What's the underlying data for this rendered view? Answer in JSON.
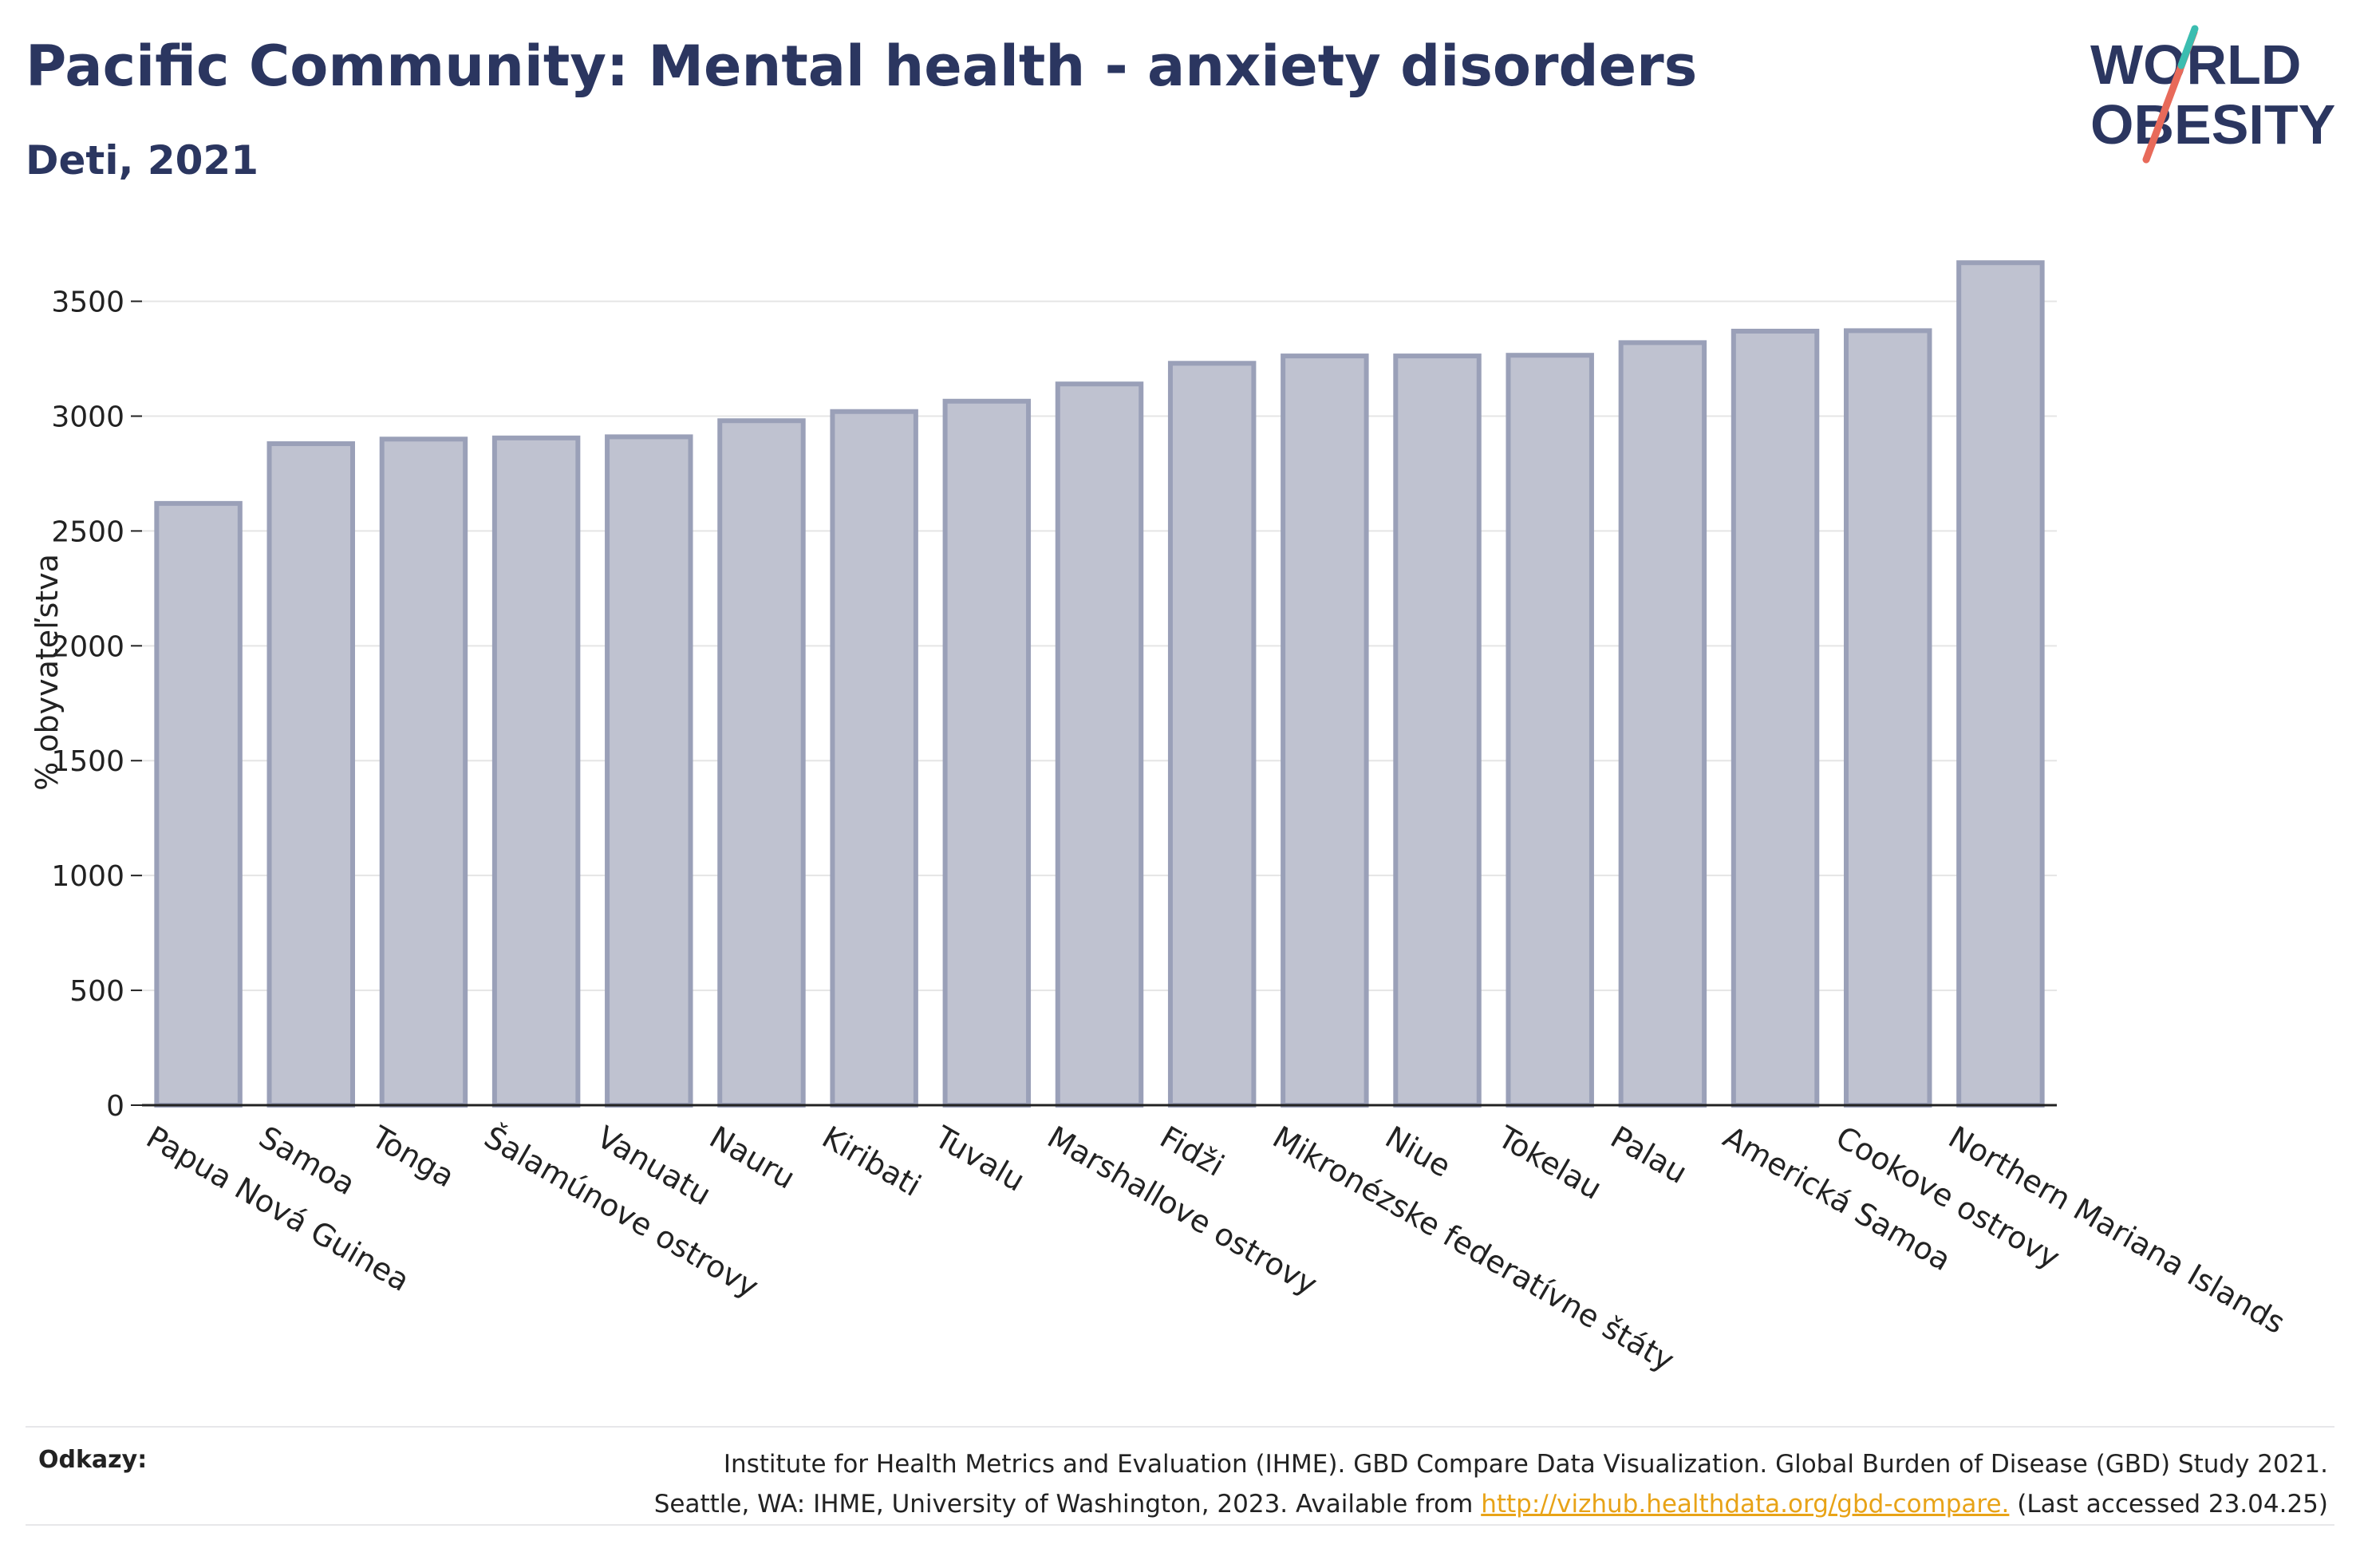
{
  "header": {
    "title": "Pacific Community: Mental health - anxiety disorders",
    "subtitle": "Deti, 2021"
  },
  "logo": {
    "line1": "WORLD",
    "line2": "OBESITY"
  },
  "chart_data": {
    "type": "bar",
    "ylabel": "% obyvateľstva",
    "ylim": [
      0,
      3700
    ],
    "yticks": [
      0,
      500,
      1000,
      1500,
      2000,
      2500,
      3000,
      3500
    ],
    "grid": true,
    "categories": [
      "Papua Nová Guinea",
      "Samoa",
      "Tonga",
      "Šalamúnove ostrovy",
      "Vanuatu",
      "Nauru",
      "Kiribati",
      "Tuvalu",
      "Marshallove ostrovy",
      "Fidži",
      "Mikronézske federatívne štáty",
      "Niue",
      "Tokelau",
      "Palau",
      "Americká Samoa",
      "Cookove ostrovy",
      "Northern Mariana Islands"
    ],
    "values": [
      2620,
      2880,
      2900,
      2905,
      2910,
      2980,
      3020,
      3065,
      3140,
      3230,
      3262,
      3262,
      3265,
      3320,
      3370,
      3372,
      3668
    ],
    "colors": {
      "bar_fill": "#bfc2d0",
      "bar_stroke": "#9aa0b8",
      "axis": "#222222",
      "grid": "#e5e5e5"
    }
  },
  "references": {
    "label": "Odkazy:",
    "line1": "Institute for Health Metrics and Evaluation (IHME). GBD Compare Data Visualization. Global Burden of Disease (GBD) Study 2021.",
    "line2_prefix": "Seattle, WA: IHME, University of Washington, 2023. Available from",
    "link": "http://vizhub.healthdata.org/gbd-compare.",
    "line2_suffix": "(Last accessed 23.04.25)"
  }
}
